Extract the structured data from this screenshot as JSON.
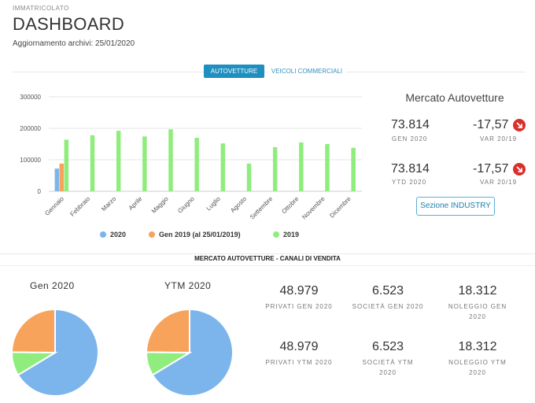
{
  "header": {
    "eyebrow": "IMMATRICOLATO",
    "title": "DASHBOARD",
    "updated": "Aggiornamento archivi: 25/01/2020"
  },
  "tabs": [
    {
      "label": "AUTOVETTURE",
      "active": true
    },
    {
      "label": "VEICOLI COMMERCIALI",
      "active": false
    }
  ],
  "chart_data": {
    "type": "bar",
    "categories": [
      "Gennaio",
      "Febbraio",
      "Marzo",
      "Aprile",
      "Maggio",
      "Giugno",
      "Luglio",
      "Agosto",
      "Settembre",
      "Ottobre",
      "Novembre",
      "Dicembre"
    ],
    "series": [
      {
        "name": "2020",
        "color": "#7cb5ec",
        "values": [
          72000,
          null,
          null,
          null,
          null,
          null,
          null,
          null,
          null,
          null,
          null,
          null
        ]
      },
      {
        "name": "Gen 2019 (al 25/01/2019)",
        "color": "#f7a35c",
        "values": [
          88000,
          null,
          null,
          null,
          null,
          null,
          null,
          null,
          null,
          null,
          null,
          null
        ]
      },
      {
        "name": "2019",
        "color": "#90ed7d",
        "values": [
          164000,
          178000,
          192000,
          174000,
          197000,
          170000,
          152000,
          88000,
          140000,
          155000,
          150000,
          138000
        ]
      }
    ],
    "yticks": [
      "0",
      "100000",
      "200000",
      "300000"
    ],
    "ylim": [
      0,
      300000
    ],
    "grid": true,
    "legend": "bottom"
  },
  "market": {
    "title": "Mercato Autovetture",
    "kpis": [
      {
        "value": "73.814",
        "label": "GEN 2020",
        "delta": "-17,57",
        "delta_label": "VAR 20/19",
        "icon": "down-arrow-icon"
      },
      {
        "value": "73.814",
        "label": "YTD 2020",
        "delta": "-17,57",
        "delta_label": "VAR 20/19",
        "icon": "down-arrow-icon"
      }
    ],
    "button": "Sezione INDUSTRY"
  },
  "channels": {
    "title": "MERCATO AUTOVETTURE - CANALI DI VENDITA",
    "pies": [
      {
        "title": "Gen 2020",
        "slices": [
          {
            "name": "Privati",
            "value": 48979,
            "color": "#7cb5ec"
          },
          {
            "name": "Società",
            "value": 6523,
            "color": "#90ed7d"
          },
          {
            "name": "Noleggio",
            "value": 18312,
            "color": "#f7a35c"
          }
        ]
      },
      {
        "title": "YTM 2020",
        "slices": [
          {
            "name": "Privati",
            "value": 48979,
            "color": "#7cb5ec"
          },
          {
            "name": "Società",
            "value": 6523,
            "color": "#90ed7d"
          },
          {
            "name": "Noleggio",
            "value": 18312,
            "color": "#f7a35c"
          }
        ]
      }
    ],
    "gen": [
      {
        "value": "48.979",
        "label": "PRIVATI GEN 2020"
      },
      {
        "value": "6.523",
        "label": "SOCIETÀ GEN 2020"
      },
      {
        "value": "18.312",
        "label": "NOLEGGIO GEN 2020"
      }
    ],
    "ytm": [
      {
        "value": "48.979",
        "label": "PRIVATI YTM 2020"
      },
      {
        "value": "6.523",
        "label": "SOCIETÀ YTM 2020"
      },
      {
        "value": "18.312",
        "label": "NOLEGGIO YTM 2020"
      }
    ]
  }
}
